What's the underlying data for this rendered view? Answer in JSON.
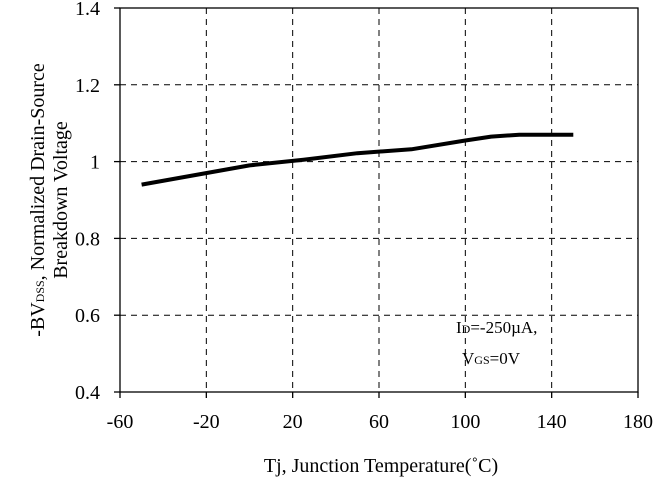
{
  "chart_data": {
    "type": "line",
    "xlabel": "Tj, Junction Temperature(˚C)",
    "ylabel": {
      "line1_prefix": "-BV",
      "line1_sub": "DSS",
      "line1_suffix": ", Normalized Drain-Source",
      "line2": "Breakdown Voltage"
    },
    "xlim": [
      -60,
      180
    ],
    "ylim": [
      0.4,
      1.4
    ],
    "x_ticks": [
      -60,
      -20,
      20,
      60,
      100,
      140,
      180
    ],
    "y_ticks": [
      0.4,
      0.6,
      0.8,
      1,
      1.2,
      1.4
    ],
    "x_tick_labels": [
      "-60",
      "-20",
      "20",
      "60",
      "100",
      "140",
      "180"
    ],
    "y_tick_labels": [
      "0.4",
      "0.6",
      "0.8",
      "1",
      "1.2",
      "1.4"
    ],
    "grid": "dashed",
    "series": [
      {
        "x": [
          -50,
          -25,
          0,
          25,
          50,
          75,
          100,
          112,
          125,
          137,
          150
        ],
        "y": [
          0.94,
          0.965,
          0.99,
          1.005,
          1.022,
          1.032,
          1.055,
          1.065,
          1.07,
          1.07,
          1.07
        ],
        "color": "#000000"
      }
    ],
    "annotation": {
      "line1_prefix": "I",
      "line1_sub": "D",
      "line1_suffix": "=-250µA,",
      "line2_prefix": "V",
      "line2_sub": "GS",
      "line2_suffix": "=0V"
    }
  }
}
